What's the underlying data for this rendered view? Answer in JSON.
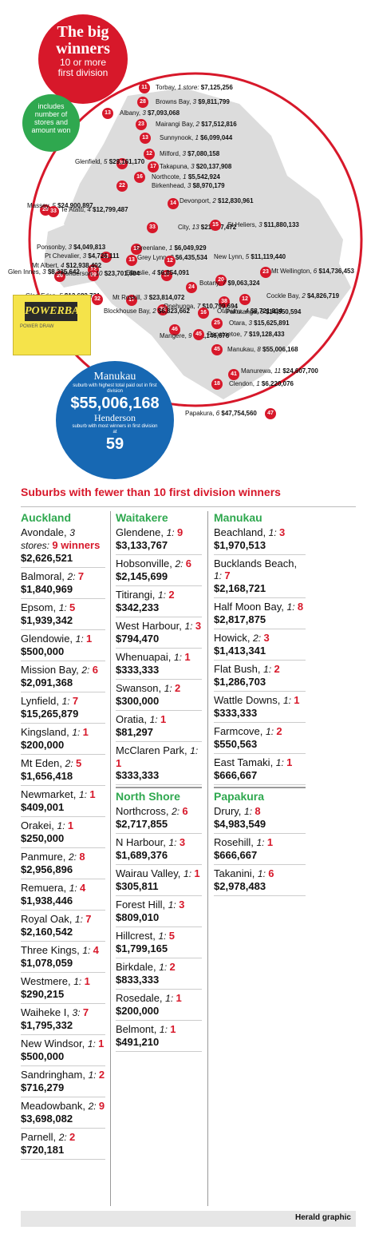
{
  "title": {
    "line1": "The big",
    "line2": "winners",
    "line3": "10 or more",
    "line4": "first division"
  },
  "green_note": "includes number of stores and amount won",
  "highlights": {
    "top_name": "Manukau",
    "top_desc": "suburb with highest total paid out in first division",
    "top_value": "$55,006,168",
    "most_name": "Henderson",
    "most_desc": "suburb with most winners in first division at",
    "most_value": "59"
  },
  "ticket": {
    "logo": "POWERBALL",
    "sub": "POWER DRAW"
  },
  "map_suburbs": [
    {
      "pin": "11",
      "name": "Torbay,",
      "stores": "1 store:",
      "amount": "$7,125,256"
    },
    {
      "pin": "28",
      "name": "Browns Bay,",
      "stores": "3",
      "amount": "$9,811,799"
    },
    {
      "pin": "13",
      "name": "Albany,",
      "stores": "3",
      "amount": "$7,093,068"
    },
    {
      "pin": "23",
      "name": "Mairangi Bay,",
      "stores": "2",
      "amount": "$17,512,816"
    },
    {
      "pin": "13",
      "name": "Sunnynook,",
      "stores": "1",
      "amount": "$6,099,044"
    },
    {
      "pin": "12",
      "name": "Milford,",
      "stores": "3",
      "amount": "$7,080,158"
    },
    {
      "pin": "38",
      "name": "Glenfield,",
      "stores": "5",
      "amount": "$29,161,170"
    },
    {
      "pin": "17",
      "name": "Takapuna,",
      "stores": "3",
      "amount": "$20,137,908"
    },
    {
      "pin": "16",
      "name": "Northcote,",
      "stores": "1",
      "amount": "$5,542,924"
    },
    {
      "pin": "22",
      "name": "Birkenhead,",
      "stores": "3",
      "amount": "$8,970,179"
    },
    {
      "pin": "28",
      "name": "Massey,",
      "stores": "5",
      "amount": "$24,900,897"
    },
    {
      "pin": "33",
      "name": "Te Atatu,",
      "stores": "4",
      "amount": "$12,799,487"
    },
    {
      "pin": "14",
      "name": "Devonport,",
      "stores": "2",
      "amount": "$12,830,961"
    },
    {
      "pin": "33",
      "name": "City,",
      "stores": "13",
      "amount": "$21,637,472"
    },
    {
      "pin": "15",
      "name": "St Heliers,",
      "stores": "3",
      "amount": "$11,880,133"
    },
    {
      "pin": "12",
      "name": "Ponsonby,",
      "stores": "3",
      "amount": "$4,049,813"
    },
    {
      "pin": "11",
      "name": "Pt Chevalier,",
      "stores": "3",
      "amount": "$4,726,111"
    },
    {
      "pin": "13",
      "name": "Grey Lynn,",
      "stores": "2",
      "amount": "$6,435,534"
    },
    {
      "pin": "12",
      "name": "Mt Albert,",
      "stores": "4",
      "amount": "$12,938,402"
    },
    {
      "pin": "12",
      "name": "Greenlane,",
      "stores": "1",
      "amount": "$6,049,929"
    },
    {
      "pin": "26",
      "name": "Glen Innes,",
      "stores": "3",
      "amount": "$8,335,642"
    },
    {
      "pin": "59",
      "name": "Henderson,",
      "stores": "10",
      "amount": "$23,701,684"
    },
    {
      "pin": "20",
      "name": "New Lynn,",
      "stores": "5",
      "amount": "$11,119,440"
    },
    {
      "pin": "23",
      "name": "Mt Wellington,",
      "stores": "6",
      "amount": "$14,736,453"
    },
    {
      "pin": "12",
      "name": "Cockle Bay,",
      "stores": "2",
      "amount": "$4,826,719"
    },
    {
      "pin": "24",
      "name": "Botany,",
      "stores": "7",
      "amount": "$9,063,324"
    },
    {
      "pin": "26",
      "name": "Glen Eden,",
      "stores": "5",
      "amount": "$13,682,731"
    },
    {
      "pin": "17",
      "name": "Ellerslie,",
      "stores": "4",
      "amount": "$6,854,091"
    },
    {
      "pin": "38",
      "name": "Pakuranga,",
      "stores": "8",
      "amount": "$14,550,594"
    },
    {
      "pin": "17",
      "name": "Mt Roskill,",
      "stores": "3",
      "amount": "$23,814,072"
    },
    {
      "pin": "32",
      "name": "Onehunga,",
      "stores": "7",
      "amount": "$10,799,694"
    },
    {
      "pin": "32",
      "name": "Blockhouse Bay,",
      "stores": "2",
      "amount": "$6,823,662"
    },
    {
      "pin": "16",
      "name": "Otahuhu,",
      "stores": "4",
      "amount": "$8,721,814"
    },
    {
      "pin": "25",
      "name": "Otara,",
      "stores": "3",
      "amount": "$15,625,891"
    },
    {
      "pin": "46",
      "name": "Mangere,",
      "stores": "9",
      "amount": "$32,146,676"
    },
    {
      "pin": "45",
      "name": "Papatoetoe,",
      "stores": "7",
      "amount": "$19,128,433"
    },
    {
      "pin": "45",
      "name": "Manukau,",
      "stores": "8",
      "amount": "$55,006,168"
    },
    {
      "pin": "41",
      "name": "Manurewa,",
      "stores": "11",
      "amount": "$24,607,700"
    },
    {
      "pin": "18",
      "name": "Clendon,",
      "stores": "1",
      "amount": "$6,220,076"
    },
    {
      "pin": "47",
      "name": "Papakura,",
      "stores": "6",
      "amount": "$47,754,560"
    }
  ],
  "section_title": "Suburbs with fewer than 10 first division winners",
  "columns": [
    {
      "groups": [
        {
          "heading": "Auckland",
          "entries": [
            {
              "name": "Avondale,",
              "stores": "3 stores:",
              "winners": "9 winners",
              "amount": "$2,626,521"
            },
            {
              "name": "Balmoral,",
              "stores": "2:",
              "winners": "7",
              "amount": "$1,840,969"
            },
            {
              "name": "Epsom,",
              "stores": "1:",
              "winners": "5",
              "amount": "$1,939,342"
            },
            {
              "name": "Glendowie,",
              "stores": "1:",
              "winners": "1",
              "amount": "$500,000"
            },
            {
              "name": "Mission Bay,",
              "stores": "2:",
              "winners": "6",
              "amount": "$2,091,368"
            },
            {
              "name": "Lynfield,",
              "stores": "1:",
              "winners": "7",
              "amount": "$15,265,879"
            },
            {
              "name": "Kingsland,",
              "stores": "1:",
              "winners": "1",
              "amount": "$200,000"
            },
            {
              "name": "Mt Eden,",
              "stores": "2:",
              "winners": "5",
              "amount": "$1,656,418"
            },
            {
              "name": "Newmarket,",
              "stores": "1:",
              "winners": "1",
              "amount": "$409,001"
            },
            {
              "name": "Orakei,",
              "stores": "1:",
              "winners": "1",
              "amount": "$250,000"
            },
            {
              "name": "Panmure,",
              "stores": "2:",
              "winners": "8",
              "amount": "$2,956,896"
            },
            {
              "name": "Remuera,",
              "stores": "1:",
              "winners": "4",
              "amount": "$1,938,446"
            },
            {
              "name": "Royal Oak,",
              "stores": "1:",
              "winners": "7",
              "amount": "$2,160,542"
            },
            {
              "name": "Three Kings,",
              "stores": "1:",
              "winners": "4",
              "amount": "$1,078,059"
            },
            {
              "name": "Westmere,",
              "stores": "1:",
              "winners": "1",
              "amount": "$290,215"
            },
            {
              "name": "Waiheke I,",
              "stores": "3:",
              "winners": "7",
              "amount": "$1,795,332"
            },
            {
              "name": "New Windsor,",
              "stores": "1:",
              "winners": "1",
              "amount": "$500,000"
            },
            {
              "name": "Sandringham,",
              "stores": "1:",
              "winners": "2",
              "amount": "$716,279"
            },
            {
              "name": "Meadowbank,",
              "stores": "2:",
              "winners": "9",
              "amount": "$3,698,082"
            },
            {
              "name": "Parnell,",
              "stores": "2:",
              "winners": "2",
              "amount": "$720,181"
            }
          ]
        }
      ]
    },
    {
      "groups": [
        {
          "heading": "Waitakere",
          "entries": [
            {
              "name": "Glendene,",
              "stores": "1:",
              "winners": "9",
              "amount": "$3,133,767"
            },
            {
              "name": "Hobsonville,",
              "stores": "2:",
              "winners": "6",
              "amount": "$2,145,699"
            },
            {
              "name": "Titirangi,",
              "stores": "1:",
              "winners": "2",
              "amount": "$342,233"
            },
            {
              "name": "West Harbour,",
              "stores": "1:",
              "winners": "3",
              "amount": "$794,470"
            },
            {
              "name": "Whenuapai,",
              "stores": "1:",
              "winners": "1",
              "amount": "$333,333"
            },
            {
              "name": "Swanson,",
              "stores": "1:",
              "winners": "2",
              "amount": "$300,000"
            },
            {
              "name": "Oratia,",
              "stores": "1:",
              "winners": "1",
              "amount": "$81,297"
            },
            {
              "name": "McClaren Park,",
              "stores": "1:",
              "winners": "1",
              "amount": "$333,333"
            }
          ]
        },
        {
          "heading": "North Shore",
          "entries": [
            {
              "name": "Northcross,",
              "stores": "2:",
              "winners": "6",
              "amount": "$2,717,855"
            },
            {
              "name": "N Harbour,",
              "stores": "1:",
              "winners": "3",
              "amount": "$1,689,376"
            },
            {
              "name": "Wairau Valley,",
              "stores": "1:",
              "winners": "1",
              "amount": "$305,811"
            },
            {
              "name": "Forest Hill,",
              "stores": "1:",
              "winners": "3",
              "amount": "$809,010"
            },
            {
              "name": "Hillcrest,",
              "stores": "1:",
              "winners": "5",
              "amount": "$1,799,165"
            },
            {
              "name": "Birkdale,",
              "stores": "1:",
              "winners": "2",
              "amount": "$833,333"
            },
            {
              "name": "Rosedale,",
              "stores": "1:",
              "winners": "1",
              "amount": "$200,000"
            },
            {
              "name": "Belmont,",
              "stores": "1:",
              "winners": "1",
              "amount": "$491,210"
            }
          ]
        }
      ]
    },
    {
      "groups": [
        {
          "heading": "Manukau",
          "entries": [
            {
              "name": "Beachland,",
              "stores": "1:",
              "winners": "3",
              "amount": "$1,970,513"
            },
            {
              "name": "Bucklands Beach,",
              "stores": "1:",
              "winners": "7",
              "amount": "$2,168,721"
            },
            {
              "name": "Half Moon Bay,",
              "stores": "1:",
              "winners": "8",
              "amount": "$2,817,875"
            },
            {
              "name": "Howick,",
              "stores": "2:",
              "winners": "3",
              "amount": "$1,413,341"
            },
            {
              "name": "Flat Bush,",
              "stores": "1:",
              "winners": "2",
              "amount": "$1,286,703"
            },
            {
              "name": "Wattle Downs,",
              "stores": "1:",
              "winners": "1",
              "amount": "$333,333"
            },
            {
              "name": "Farmcove,",
              "stores": "1:",
              "winners": "2",
              "amount": "$550,563"
            },
            {
              "name": "East Tamaki,",
              "stores": "1:",
              "winners": "1",
              "amount": "$666,667"
            }
          ]
        },
        {
          "heading": "Papakura",
          "entries": [
            {
              "name": "Drury,",
              "stores": "1:",
              "winners": "8",
              "amount": "$4,983,549"
            },
            {
              "name": "Rosehill,",
              "stores": "1:",
              "winners": "1",
              "amount": "$666,667"
            },
            {
              "name": "Takanini,",
              "stores": "1:",
              "winners": "6",
              "amount": "$2,978,483"
            }
          ]
        }
      ]
    }
  ],
  "footer": "Herald graphic",
  "colors": {
    "red": "#d7182a",
    "green": "#2fa84f",
    "blue": "#1768b3",
    "map": "#dcdcdc"
  }
}
